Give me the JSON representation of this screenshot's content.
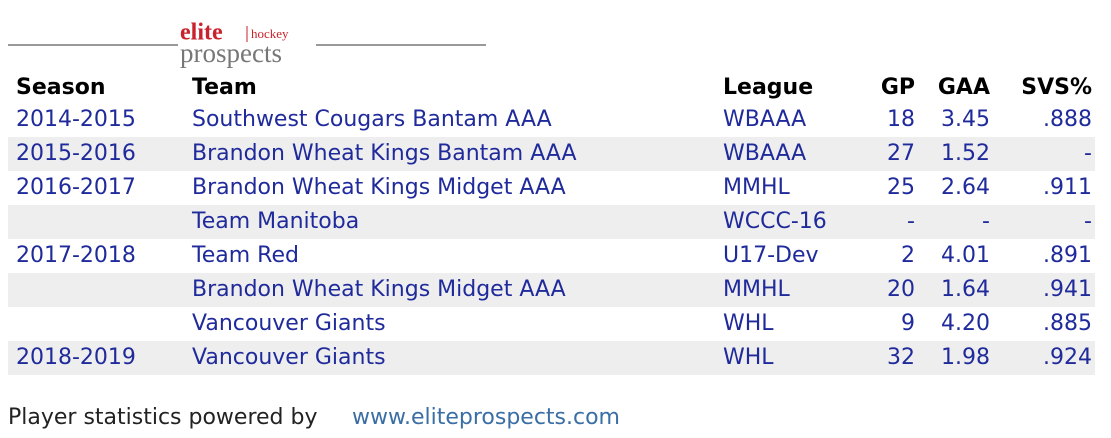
{
  "logo": {
    "brand": "elite",
    "sport": "hockey",
    "name": "prospects"
  },
  "table": {
    "headers": [
      "Season",
      "Team",
      "League",
      "GP",
      "GAA",
      "SVS%"
    ],
    "rows": [
      [
        "2014-2015",
        "Southwest Cougars Bantam AAA",
        "WBAAA",
        "18",
        "3.45",
        ".888"
      ],
      [
        "2015-2016",
        "Brandon Wheat Kings Bantam AAA",
        "WBAAA",
        "27",
        "1.52",
        "-"
      ],
      [
        "2016-2017",
        "Brandon Wheat Kings Midget AAA",
        "MMHL",
        "25",
        "2.64",
        ".911"
      ],
      [
        null,
        "Team Manitoba",
        "WCCC-16",
        "-",
        "-",
        "-"
      ],
      [
        "2017-2018",
        "Team Red",
        "U17-Dev",
        "2",
        "4.01",
        ".891"
      ],
      [
        null,
        "Brandon Wheat Kings Midget AAA",
        "MMHL",
        "20",
        "1.64",
        ".941"
      ],
      [
        null,
        "Vancouver Giants",
        "WHL",
        "9",
        "4.20",
        ".885"
      ],
      [
        "2018-2019",
        "Vancouver Giants",
        "WHL",
        "32",
        "1.98",
        ".924"
      ]
    ]
  },
  "footer": {
    "text": "Player statistics powered by",
    "link": "www.eliteprospects.com"
  }
}
